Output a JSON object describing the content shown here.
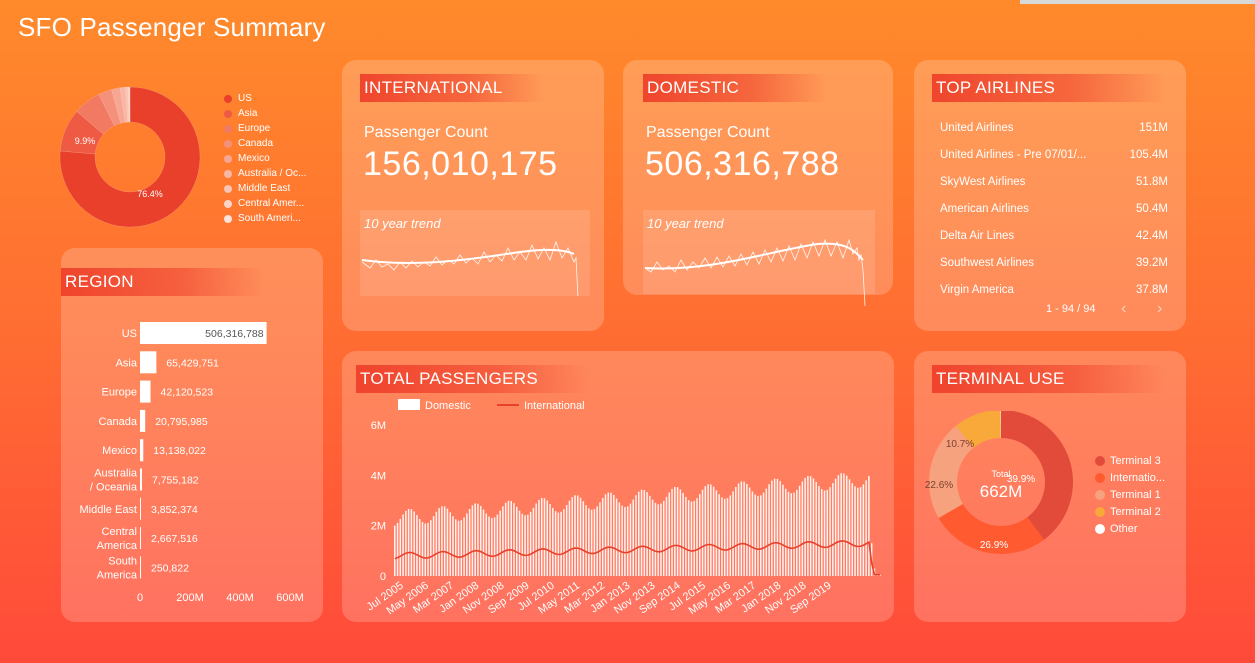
{
  "page_title": "SFO Passenger Summary",
  "colors": {
    "accent_red": "#e8402a",
    "white": "#ffffff"
  },
  "international": {
    "header": "INTERNATIONAL",
    "count_label": "Passenger Count",
    "count": "156,010,175",
    "trend_label": "10 year trend"
  },
  "domestic": {
    "header": "DOMESTIC",
    "count_label": "Passenger Count",
    "count": "506,316,788",
    "trend_label": "10 year trend"
  },
  "top_airlines": {
    "header": "TOP AIRLINES",
    "rows": [
      {
        "name": "United Airlines",
        "value": "151M"
      },
      {
        "name": "United Airlines - Pre 07/01/...",
        "value": "105.4M"
      },
      {
        "name": "SkyWest Airlines",
        "value": "51.8M"
      },
      {
        "name": "American Airlines",
        "value": "50.4M"
      },
      {
        "name": "Delta Air Lines",
        "value": "42.4M"
      },
      {
        "name": "Southwest Airlines",
        "value": "39.2M"
      },
      {
        "name": "Virgin America",
        "value": "37.8M"
      }
    ],
    "pagination": "1 - 94 / 94",
    "prev_icon": "chevron-left-icon",
    "next_icon": "chevron-right-icon"
  },
  "chart_data": [
    {
      "id": "region-donut",
      "type": "pie",
      "categories": [
        "US",
        "Asia",
        "Europe",
        "Canada",
        "Mexico",
        "Australia / Oc...",
        "Middle East",
        "Central Amer...",
        "South Ameri..."
      ],
      "values": [
        76.4,
        9.9,
        6.4,
        3.1,
        2.0,
        1.2,
        0.6,
        0.4,
        0.04
      ],
      "labels": {
        "US": "76.4%",
        "Asia": "9.9%"
      },
      "colors": [
        "#e8402a",
        "#ee5a44",
        "#f27a62",
        "#f5907a",
        "#f7a693",
        "#f9b6a4",
        "#fac4b6",
        "#fcd4c8",
        "#fde3db"
      ],
      "legend": "right"
    },
    {
      "id": "region-bar",
      "type": "bar",
      "title": "REGION",
      "orientation": "horizontal",
      "categories": [
        "US",
        "Asia",
        "Europe",
        "Canada",
        "Mexico",
        "Australia / Oceania",
        "Middle East",
        "Central America",
        "South America"
      ],
      "values": [
        506316788,
        65429751,
        42120523,
        20795985,
        13138022,
        7755182,
        3852374,
        2667516,
        250822
      ],
      "value_labels": [
        "506,316,788",
        "65,429,751",
        "42,120,523",
        "20,795,985",
        "13,138,022",
        "7,755,182",
        "3,852,374",
        "2,667,516",
        "250,822"
      ],
      "xlim": [
        0,
        600000000
      ],
      "xticks": [
        "0",
        "200M",
        "400M",
        "600M"
      ]
    },
    {
      "id": "total-passengers",
      "type": "bar",
      "title": "TOTAL PASSENGERS",
      "series": [
        {
          "name": "Domestic",
          "type": "bar",
          "color": "#ffffff"
        },
        {
          "name": "International",
          "type": "line",
          "color": "#e8402a"
        }
      ],
      "ylim": [
        0,
        6000000
      ],
      "yticks": [
        "0",
        "2M",
        "4M",
        "6M"
      ],
      "xticks": [
        "Jul 2005",
        "May 2006",
        "Mar 2007",
        "Jan 2008",
        "Nov 2008",
        "Sep 2009",
        "Jul 2010",
        "May 2011",
        "Mar 2012",
        "Jan 2013",
        "Nov 2013",
        "Sep 2014",
        "Jul 2015",
        "May 2016",
        "Mar 2017",
        "Jan 2018",
        "Nov 2018",
        "Sep 2019"
      ]
    },
    {
      "id": "terminal-use",
      "type": "pie",
      "title": "TERMINAL USE",
      "categories": [
        "Terminal 3",
        "Internatio...",
        "Terminal 1",
        "Terminal 2",
        "Other"
      ],
      "values": [
        39.9,
        26.9,
        22.6,
        10.7,
        0.1
      ],
      "value_labels": [
        "39.9%",
        "26.9%",
        "22.6%",
        "10.7%",
        ""
      ],
      "colors": [
        "#e24a3a",
        "#ff5a30",
        "#f7a27e",
        "#f8a93a",
        "#ffffff"
      ],
      "center_label": "Total",
      "center_value": "662M",
      "legend": "right"
    }
  ]
}
